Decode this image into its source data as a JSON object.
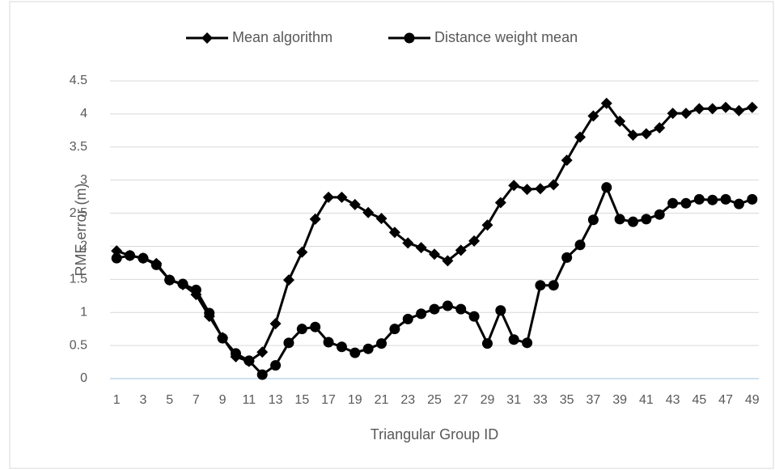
{
  "chart_data": {
    "type": "line",
    "x_label": "Triangular Group ID",
    "y_label": "RME error (m)",
    "categories": [
      1,
      null,
      3,
      null,
      5,
      null,
      7,
      null,
      9,
      null,
      11,
      null,
      13,
      null,
      15,
      null,
      17,
      null,
      19,
      null,
      21,
      null,
      23,
      null,
      25,
      null,
      27,
      null,
      29,
      null,
      31,
      null,
      33,
      null,
      35,
      null,
      37,
      null,
      39,
      null,
      41,
      null,
      43,
      null,
      45,
      null,
      47,
      null,
      49
    ],
    "series": [
      {
        "name": "Mean algorithm",
        "color": "#000000",
        "marker": "diamond",
        "values": [
          1.93,
          1.86,
          1.82,
          1.74,
          1.49,
          1.42,
          1.27,
          0.94,
          0.62,
          0.33,
          0.26,
          0.4,
          0.83,
          1.49,
          1.91,
          2.41,
          2.74,
          2.74,
          2.63,
          2.51,
          2.42,
          2.21,
          2.05,
          1.98,
          1.88,
          1.78,
          1.94,
          2.08,
          2.32,
          2.66,
          2.92,
          2.86,
          2.87,
          2.93,
          3.3,
          3.65,
          3.97,
          4.16,
          3.89,
          3.68,
          3.7,
          3.79,
          4.01,
          4.01,
          4.08,
          4.08,
          4.1,
          4.05,
          4.1
        ]
      },
      {
        "name": "Distance weight mean",
        "color": "#000000",
        "marker": "circle",
        "values": [
          1.82,
          1.86,
          1.82,
          1.72,
          1.49,
          1.43,
          1.34,
          0.99,
          0.61,
          0.38,
          0.27,
          0.06,
          0.2,
          0.54,
          0.75,
          0.78,
          0.55,
          0.48,
          0.39,
          0.45,
          0.53,
          0.75,
          0.9,
          0.98,
          1.05,
          1.1,
          1.05,
          0.94,
          0.53,
          1.03,
          0.59,
          0.54,
          1.41,
          1.41,
          1.83,
          2.02,
          2.4,
          2.89,
          2.41,
          2.37,
          2.41,
          2.48,
          2.65,
          2.65,
          2.71,
          2.7,
          2.71,
          2.64,
          2.71
        ]
      }
    ],
    "ylim": [
      0,
      4.5
    ],
    "yticks": [
      0,
      0.5,
      1,
      1.5,
      2,
      2.5,
      3,
      3.5,
      4,
      4.5
    ],
    "grid": true,
    "legend": "top"
  }
}
